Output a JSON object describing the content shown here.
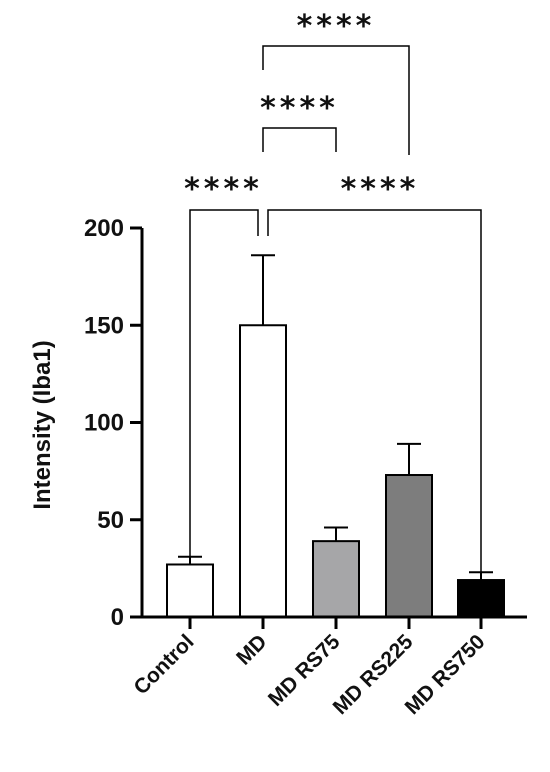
{
  "chart_data": {
    "type": "bar",
    "title": "",
    "xlabel": "",
    "ylabel": "Intensity (Iba1)",
    "ylim": [
      0,
      200
    ],
    "yticks": [
      0,
      50,
      100,
      150,
      200
    ],
    "categories": [
      "Control",
      "MD",
      "MD RS75",
      "MD RS225",
      "MD RS750"
    ],
    "values": [
      27,
      150,
      39,
      73,
      19
    ],
    "errors": [
      4,
      36,
      7,
      16,
      4
    ],
    "colors": [
      "#ffffff",
      "#ffffff",
      "#a6a6a8",
      "#7d7d7d",
      "#000000"
    ],
    "significance": [
      {
        "from": 1,
        "to": 4,
        "label": "****"
      },
      {
        "from": 1,
        "to": 2,
        "label": "****"
      },
      {
        "from": 0,
        "to": 1,
        "label": "****"
      },
      {
        "from": 1,
        "to": 4,
        "label": "****"
      }
    ]
  }
}
